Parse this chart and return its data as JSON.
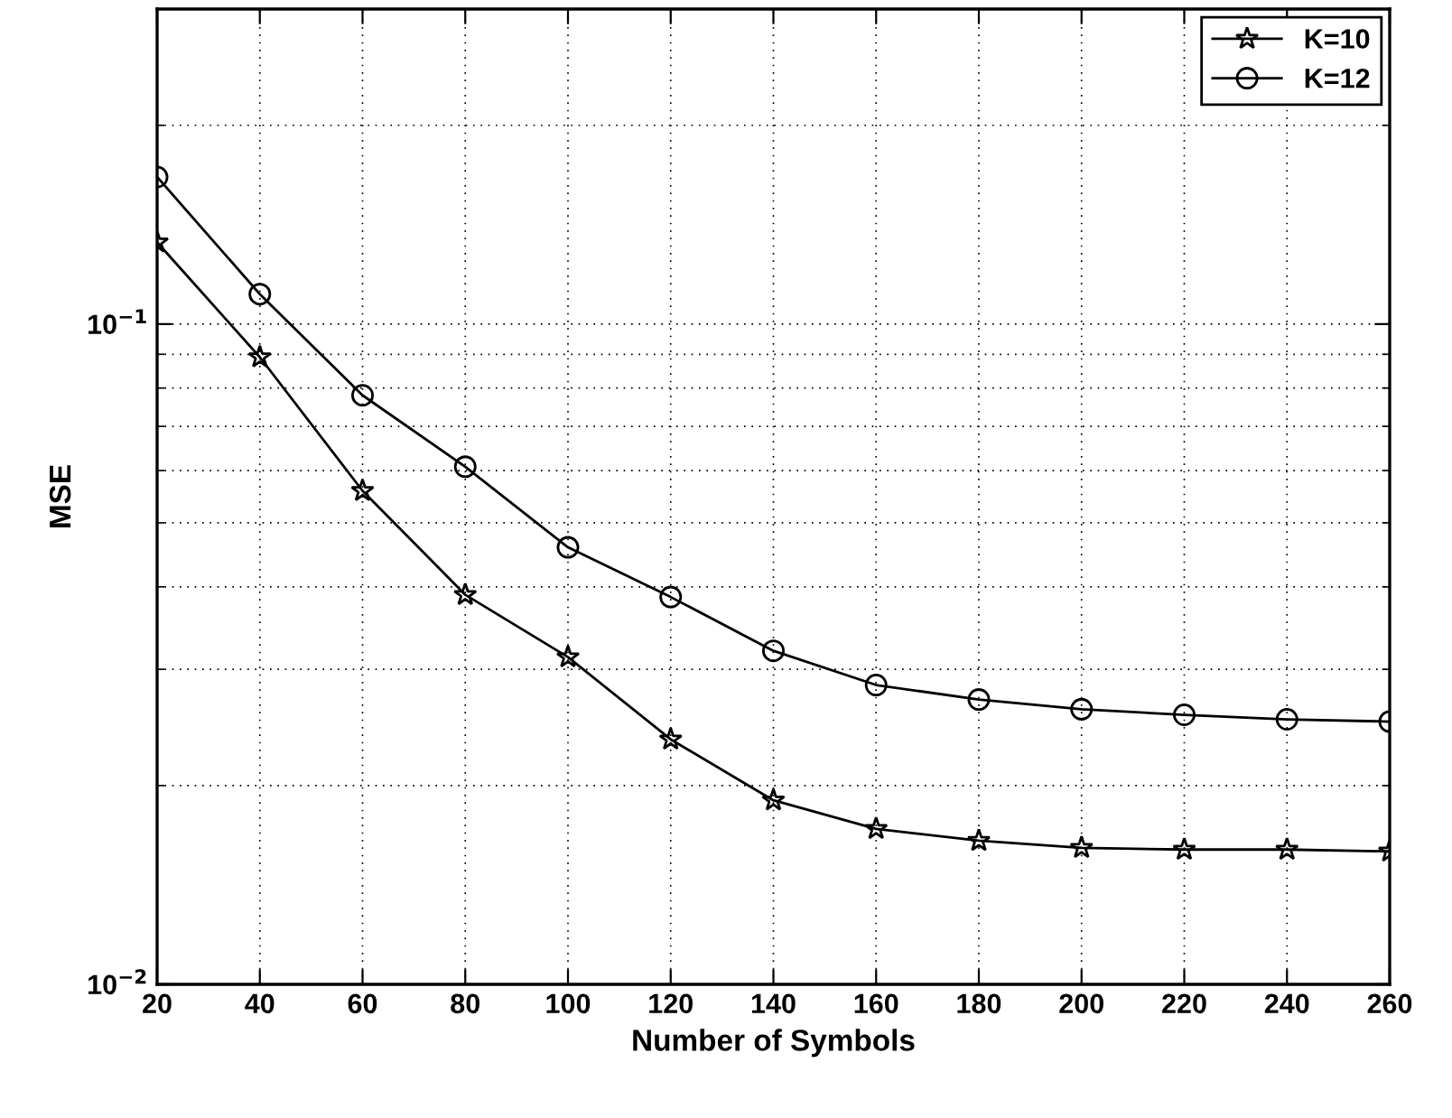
{
  "chart_data": {
    "type": "line",
    "xlabel": "Number of Symbols",
    "ylabel": "MSE",
    "x": [
      20,
      40,
      60,
      80,
      100,
      120,
      140,
      160,
      180,
      200,
      220,
      240,
      260
    ],
    "series": [
      {
        "name": "K=10",
        "color": "#000000",
        "marker": "star",
        "values": [
          0.133,
          0.0891,
          0.0559,
          0.0389,
          0.0313,
          0.0235,
          0.019,
          0.0172,
          0.0165,
          0.0161,
          0.016,
          0.016,
          0.0159
        ]
      },
      {
        "name": "K=12",
        "color": "#000000",
        "marker": "circle",
        "values": [
          0.167,
          0.111,
          0.078,
          0.0608,
          0.0459,
          0.0386,
          0.032,
          0.0284,
          0.027,
          0.0261,
          0.0256,
          0.0252,
          0.025
        ]
      }
    ],
    "log": "y",
    "xlim": [
      20,
      260
    ],
    "xticks": [
      20,
      40,
      60,
      80,
      100,
      120,
      140,
      160,
      180,
      200,
      220,
      240,
      260
    ],
    "ylim": [
      0.01,
      0.3
    ],
    "yticks": [
      {
        "value": 0.01,
        "label": "10$^{−2}$"
      },
      {
        "value": 0.02,
        "label": null
      },
      {
        "value": 0.03,
        "label": null
      },
      {
        "value": 0.04,
        "label": null
      },
      {
        "value": 0.05,
        "label": null
      },
      {
        "value": 0.06,
        "label": null
      },
      {
        "value": 0.07,
        "label": null
      },
      {
        "value": 0.08,
        "label": null
      },
      {
        "value": 0.09,
        "label": null
      },
      {
        "value": 0.1,
        "label": "10$^{−1}$"
      },
      {
        "value": 0.2,
        "label": null
      }
    ],
    "grid": true,
    "legend": "top right",
    "line_style": "solid"
  }
}
